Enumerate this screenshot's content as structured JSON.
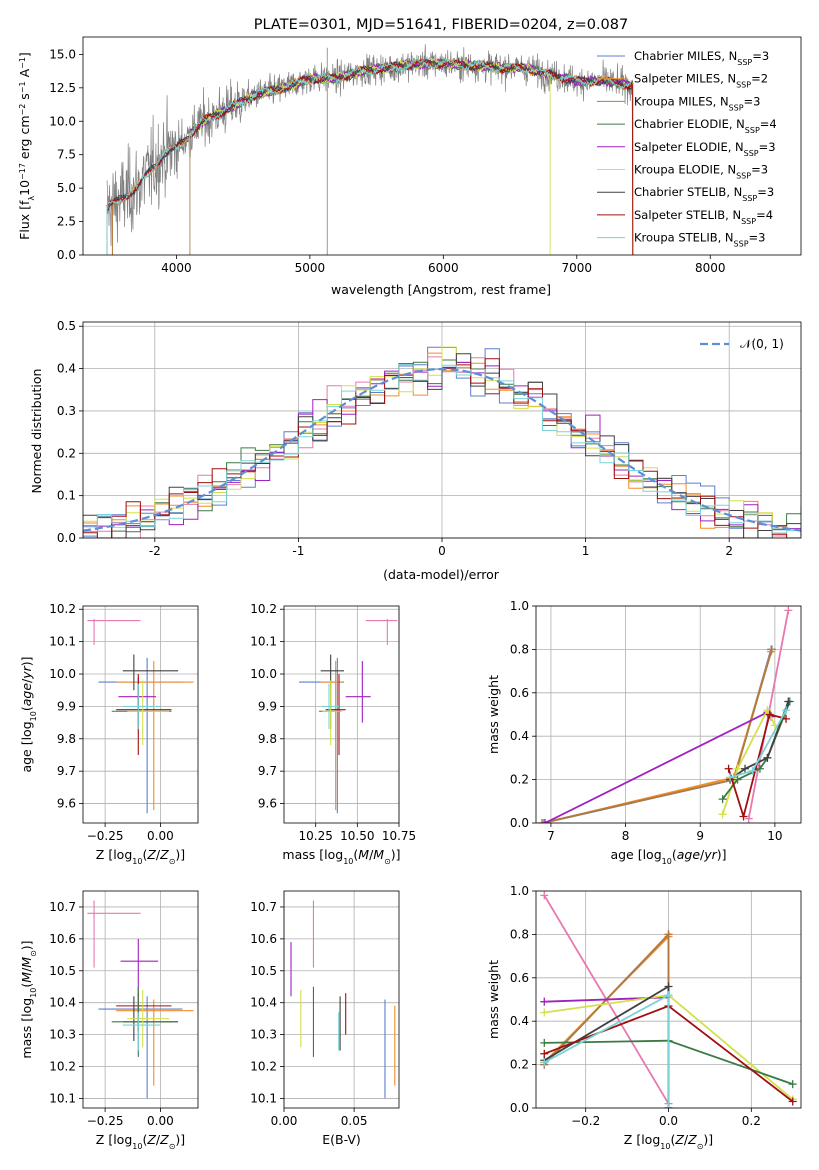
{
  "colors": {
    "Chabrier MILES": "#5b7fd1",
    "Salpeter MILES": "#f28c28",
    "Kroupa MILES": "#b07a3f",
    "Chabrier ELODIE": "#3c7a45",
    "Salpeter ELODIE": "#a020c0",
    "Kroupa ELODIE": "#d4e04a",
    "Chabrier STELIB": "#404040",
    "Salpeter STELIB": "#a01010",
    "Kroupa STELIB": "#7ad3d8",
    "pink": "#e878b0",
    "spectrum_gray": "#808080",
    "gaussian": "#5b8fd6"
  },
  "chart_data": [
    {
      "id": "spectrum",
      "type": "line",
      "title": "PLATE=0301, MJD=51641, FIBERID=0204, z=0.087",
      "xlabel": "wavelength [Angstrom, rest frame]",
      "ylabel": "Flux [fλ10⁻¹⁷ erg cm⁻² s⁻¹ A⁻¹]",
      "xlim": [
        3300,
        8680
      ],
      "ylim": [
        0,
        16.3
      ],
      "xticks": [
        4000,
        5000,
        6000,
        7000,
        8000
      ],
      "yticks": [
        0.0,
        2.5,
        5.0,
        7.5,
        10.0,
        12.5,
        15.0
      ],
      "continuum": [
        [
          3480,
          3.5
        ],
        [
          3700,
          5.0
        ],
        [
          3900,
          7.5
        ],
        [
          4000,
          8.0
        ],
        [
          4200,
          10.0
        ],
        [
          4400,
          11.0
        ],
        [
          4600,
          12.0
        ],
        [
          4800,
          12.5
        ],
        [
          5000,
          13.2
        ],
        [
          5200,
          13.2
        ],
        [
          5400,
          13.8
        ],
        [
          5600,
          14.0
        ],
        [
          5800,
          14.3
        ],
        [
          6000,
          14.3
        ],
        [
          6200,
          14.2
        ],
        [
          6400,
          14.0
        ],
        [
          6600,
          14.0
        ],
        [
          6800,
          13.5
        ],
        [
          7000,
          13.0
        ],
        [
          7200,
          13.0
        ],
        [
          7400,
          12.7
        ]
      ],
      "legend": [
        {
          "label": "Chabrier MILES, N_SSP=3",
          "color": "Chabrier MILES"
        },
        {
          "label": "Salpeter MILES, N_SSP=2",
          "color": "Salpeter MILES"
        },
        {
          "label": "Kroupa MILES, N_SSP=3",
          "color": "Kroupa MILES"
        },
        {
          "label": "Chabrier ELODIE, N_SSP=4",
          "color": "Chabrier ELODIE"
        },
        {
          "label": "Salpeter ELODIE, N_SSP=3",
          "color": "Salpeter ELODIE"
        },
        {
          "label": "Kroupa ELODIE, N_SSP=3",
          "color": "Kroupa ELODIE"
        },
        {
          "label": "Chabrier STELIB, N_SSP=3",
          "color": "Chabrier STELIB"
        },
        {
          "label": "Salpeter STELIB, N_SSP=4",
          "color": "Salpeter STELIB"
        },
        {
          "label": "Kroupa STELIB, N_SSP=3",
          "color": "Kroupa STELIB"
        }
      ],
      "legend_position": "right"
    },
    {
      "id": "residuals",
      "type": "step",
      "xlabel": "(data-model)/error",
      "ylabel": "Normed distribution",
      "xlim": [
        -2.5,
        2.5
      ],
      "ylim": [
        0,
        0.51
      ],
      "xticks": [
        -2,
        -1,
        0,
        1,
        2
      ],
      "yticks": [
        0.0,
        0.1,
        0.2,
        0.3,
        0.4,
        0.5
      ],
      "bin_width": 0.1,
      "legend": [
        {
          "label": "𝒩(0, 1)",
          "color": "gaussian"
        }
      ],
      "legend_position": "upper right",
      "grid": true
    },
    {
      "id": "age_vs_Z",
      "type": "errorbar",
      "xlabel": "Z [log10(Z/Z⊙)]",
      "ylabel": "age  [log10(age/yr)]",
      "xlim": [
        -0.35,
        0.17
      ],
      "ylim": [
        9.54,
        10.21
      ],
      "xticks": [
        -0.25,
        0.0
      ],
      "xticklabels": [
        "−0.25",
        "0.00"
      ],
      "yticks": [
        9.6,
        9.7,
        9.8,
        9.9,
        10.0,
        10.1,
        10.2
      ],
      "grid": true,
      "points": [
        {
          "c": "pink",
          "x": -0.3,
          "xl": -0.33,
          "xh": -0.09,
          "y": 10.165,
          "yl": 10.09,
          "yh": 10.17
        },
        {
          "c": "Chabrier MILES",
          "x": -0.06,
          "xl": -0.28,
          "xh": 0.1,
          "y": 9.975,
          "yl": 9.57,
          "yh": 10.05
        },
        {
          "c": "Salpeter MILES",
          "x": -0.03,
          "xl": -0.2,
          "xh": 0.15,
          "y": 9.975,
          "yl": 9.58,
          "yh": 10.04
        },
        {
          "c": "Chabrier STELIB",
          "x": -0.12,
          "xl": -0.17,
          "xh": 0.08,
          "y": 10.01,
          "yl": 9.95,
          "yh": 10.06
        },
        {
          "c": "Salpeter ELODIE",
          "x": -0.1,
          "xl": -0.19,
          "xh": -0.02,
          "y": 9.93,
          "yl": 9.88,
          "yh": 9.99
        },
        {
          "c": "Chabrier ELODIE",
          "x": -0.1,
          "xl": -0.22,
          "xh": 0.05,
          "y": 9.885,
          "yl": 9.83,
          "yh": 9.95
        },
        {
          "c": "Salpeter STELIB",
          "x": -0.1,
          "xl": -0.2,
          "xh": 0.05,
          "y": 9.89,
          "yl": 9.75,
          "yh": 10.0
        },
        {
          "c": "Kroupa ELODIE",
          "x": -0.08,
          "xl": -0.15,
          "xh": 0.04,
          "y": 9.885,
          "yl": 9.78,
          "yh": 9.98
        },
        {
          "c": "Kroupa STELIB",
          "x": -0.1,
          "xl": -0.17,
          "xh": 0.0,
          "y": 9.9,
          "yl": 9.83,
          "yh": 9.97
        }
      ]
    },
    {
      "id": "age_vs_mass",
      "type": "errorbar",
      "xlabel": "mass [log10(M/M⊙)]",
      "xlim": [
        10.06,
        10.75
      ],
      "ylim": [
        9.54,
        10.21
      ],
      "xticks": [
        10.25,
        10.5,
        10.75
      ],
      "xticklabels": [
        "10.25",
        "10.50",
        "10.75"
      ],
      "yticks": [
        9.6,
        9.7,
        9.8,
        9.9,
        10.0,
        10.1,
        10.2
      ],
      "grid": true,
      "points": [
        {
          "c": "pink",
          "x": 10.68,
          "xl": 10.55,
          "xh": 10.74,
          "y": 10.165,
          "yl": 10.09,
          "yh": 10.17
        },
        {
          "c": "Chabrier MILES",
          "x": 10.38,
          "xl": 10.15,
          "xh": 10.42,
          "y": 9.975,
          "yl": 9.57,
          "yh": 10.05
        },
        {
          "c": "Salpeter MILES",
          "x": 10.37,
          "xl": 10.28,
          "xh": 10.41,
          "y": 9.975,
          "yl": 9.58,
          "yh": 10.04
        },
        {
          "c": "Chabrier STELIB",
          "x": 10.34,
          "xl": 10.28,
          "xh": 10.42,
          "y": 10.01,
          "yl": 9.95,
          "yh": 10.06
        },
        {
          "c": "Salpeter ELODIE",
          "x": 10.53,
          "xl": 10.43,
          "xh": 10.58,
          "y": 9.93,
          "yl": 9.85,
          "yh": 10.04
        },
        {
          "c": "Chabrier ELODIE",
          "x": 10.34,
          "xl": 10.27,
          "xh": 10.4,
          "y": 9.885,
          "yl": 9.83,
          "yh": 9.95
        },
        {
          "c": "Salpeter STELIB",
          "x": 10.39,
          "xl": 10.31,
          "xh": 10.43,
          "y": 9.89,
          "yl": 9.75,
          "yh": 10.0
        },
        {
          "c": "Kroupa ELODIE",
          "x": 10.34,
          "xl": 10.29,
          "xh": 10.41,
          "y": 9.885,
          "yl": 9.78,
          "yh": 9.98
        },
        {
          "c": "Kroupa STELIB",
          "x": 10.33,
          "xl": 10.29,
          "xh": 10.39,
          "y": 9.9,
          "yl": 9.83,
          "yh": 9.97
        }
      ]
    },
    {
      "id": "weight_vs_age",
      "type": "line",
      "xlabel": "age  [log10(age/yr)]",
      "ylabel": "mass weight",
      "xlim": [
        6.8,
        10.35
      ],
      "ylim": [
        0,
        1.0
      ],
      "xticks": [
        7,
        8,
        9,
        10
      ],
      "yticks": [
        0.0,
        0.2,
        0.4,
        0.6,
        0.8,
        1.0
      ],
      "grid": true,
      "series": [
        {
          "c": "Chabrier MILES",
          "pts": [
            [
              6.9,
              0.0
            ],
            [
              9.45,
              0.2
            ],
            [
              9.95,
              0.8
            ]
          ]
        },
        {
          "c": "Salpeter MILES",
          "pts": [
            [
              6.9,
              0.0
            ],
            [
              9.45,
              0.21
            ],
            [
              9.95,
              0.79
            ]
          ]
        },
        {
          "c": "Kroupa MILES",
          "pts": [
            [
              6.88,
              0.0
            ],
            [
              9.45,
              0.2
            ],
            [
              9.96,
              0.8
            ]
          ]
        },
        {
          "c": "pink",
          "pts": [
            [
              9.65,
              0.02
            ],
            [
              10.18,
              0.98
            ]
          ]
        },
        {
          "c": "Salpeter ELODIE",
          "pts": [
            [
              6.92,
              0.0
            ],
            [
              9.9,
              0.51
            ],
            [
              9.95,
              0.49
            ]
          ]
        },
        {
          "c": "Kroupa ELODIE",
          "pts": [
            [
              9.3,
              0.04
            ],
            [
              9.5,
              0.25
            ],
            [
              9.9,
              0.52
            ],
            [
              10.0,
              0.45
            ]
          ]
        },
        {
          "c": "Chabrier ELODIE",
          "pts": [
            [
              9.3,
              0.11
            ],
            [
              9.5,
              0.2
            ],
            [
              9.8,
              0.25
            ],
            [
              9.9,
              0.3
            ],
            [
              10.2,
              0.56
            ]
          ]
        },
        {
          "c": "Chabrier STELIB",
          "pts": [
            [
              9.4,
              0.2
            ],
            [
              9.6,
              0.25
            ],
            [
              9.9,
              0.3
            ],
            [
              10.18,
              0.56
            ]
          ]
        },
        {
          "c": "Salpeter STELIB",
          "pts": [
            [
              9.38,
              0.25
            ],
            [
              9.58,
              0.03
            ],
            [
              9.93,
              0.5
            ],
            [
              10.15,
              0.48
            ]
          ]
        },
        {
          "c": "Kroupa STELIB",
          "pts": [
            [
              9.4,
              0.21
            ],
            [
              9.7,
              0.24
            ],
            [
              10.15,
              0.52
            ]
          ]
        }
      ]
    },
    {
      "id": "mass_vs_Z",
      "type": "errorbar",
      "xlabel": "Z [log10(Z/Z⊙)]",
      "ylabel": "mass [log10(M/M⊙)]",
      "xlim": [
        -0.35,
        0.17
      ],
      "ylim": [
        10.07,
        10.75
      ],
      "xticks": [
        -0.25,
        0.0
      ],
      "xticklabels": [
        "−0.25",
        "0.00"
      ],
      "yticks": [
        10.1,
        10.2,
        10.3,
        10.4,
        10.5,
        10.6,
        10.7
      ],
      "grid": true,
      "points": [
        {
          "c": "pink",
          "x": -0.3,
          "xl": -0.33,
          "xh": -0.09,
          "y": 10.68,
          "yl": 10.51,
          "yh": 10.72
        },
        {
          "c": "Salpeter ELODIE",
          "x": -0.1,
          "xl": -0.18,
          "xh": -0.01,
          "y": 10.53,
          "yl": 10.42,
          "yh": 10.6
        },
        {
          "c": "Chabrier MILES",
          "x": -0.06,
          "xl": -0.28,
          "xh": 0.1,
          "y": 10.38,
          "yl": 10.1,
          "yh": 10.42
        },
        {
          "c": "Salpeter MILES",
          "x": -0.03,
          "xl": -0.2,
          "xh": 0.15,
          "y": 10.375,
          "yl": 10.14,
          "yh": 10.41
        },
        {
          "c": "Salpeter STELIB",
          "x": -0.1,
          "xl": -0.2,
          "xh": 0.05,
          "y": 10.39,
          "yl": 10.31,
          "yh": 10.43
        },
        {
          "c": "Chabrier STELIB",
          "x": -0.12,
          "xl": -0.17,
          "xh": 0.08,
          "y": 10.34,
          "yl": 10.28,
          "yh": 10.42
        },
        {
          "c": "Chabrier ELODIE",
          "x": -0.1,
          "xl": -0.22,
          "xh": 0.05,
          "y": 10.34,
          "yl": 10.23,
          "yh": 10.45
        },
        {
          "c": "Kroupa ELODIE",
          "x": -0.08,
          "xl": -0.15,
          "xh": 0.04,
          "y": 10.35,
          "yl": 10.26,
          "yh": 10.44
        },
        {
          "c": "Kroupa STELIB",
          "x": -0.1,
          "xl": -0.17,
          "xh": 0.0,
          "y": 10.33,
          "yl": 10.25,
          "yh": 10.37
        }
      ]
    },
    {
      "id": "mass_vs_ebv",
      "type": "errorbar",
      "xlabel": "E(B-V)",
      "xlim": [
        0.0,
        0.082
      ],
      "ylim": [
        10.07,
        10.75
      ],
      "xticks": [
        0.0,
        0.05
      ],
      "xticklabels": [
        "0.00",
        "0.05"
      ],
      "yticks": [
        10.1,
        10.2,
        10.3,
        10.4,
        10.5,
        10.6,
        10.7
      ],
      "grid": true,
      "points": [
        {
          "c": "Salpeter ELODIE",
          "x": 0.005,
          "y": 10.53,
          "yl": 10.42,
          "yh": 10.59
        },
        {
          "c": "pink",
          "x": 0.021,
          "y": 10.68,
          "yl": 10.51,
          "yh": 10.72
        },
        {
          "c": "Kroupa ELODIE",
          "x": 0.012,
          "y": 10.35,
          "yl": 10.26,
          "yh": 10.44
        },
        {
          "c": "Chabrier ELODIE",
          "x": 0.021,
          "y": 10.34,
          "yl": 10.23,
          "yh": 10.45
        },
        {
          "c": "Kroupa STELIB",
          "x": 0.039,
          "y": 10.33,
          "yl": 10.25,
          "yh": 10.37
        },
        {
          "c": "Chabrier STELIB",
          "x": 0.04,
          "y": 10.34,
          "yl": 10.25,
          "yh": 10.42
        },
        {
          "c": "Salpeter STELIB",
          "x": 0.044,
          "y": 10.39,
          "yl": 10.3,
          "yh": 10.43
        },
        {
          "c": "Chabrier MILES",
          "x": 0.072,
          "y": 10.38,
          "yl": 10.1,
          "yh": 10.41
        },
        {
          "c": "Salpeter MILES",
          "x": 0.079,
          "y": 10.37,
          "yl": 10.14,
          "yh": 10.39
        }
      ]
    },
    {
      "id": "weight_vs_Z",
      "type": "line",
      "xlabel": "Z [log10(Z/Z⊙)]",
      "ylabel": "mass weight",
      "xlim": [
        -0.32,
        0.32
      ],
      "ylim": [
        0,
        1.0
      ],
      "xticks": [
        -0.2,
        0.0,
        0.2
      ],
      "xticklabels": [
        "−0.2",
        "0.0",
        "0.2"
      ],
      "yticks": [
        0.0,
        0.2,
        0.4,
        0.6,
        0.8,
        1.0
      ],
      "grid": true,
      "series": [
        {
          "c": "pink",
          "pts": [
            [
              -0.3,
              0.98
            ],
            [
              0.0,
              0.02
            ]
          ]
        },
        {
          "c": "Chabrier MILES",
          "pts": [
            [
              -0.3,
              0.2
            ],
            [
              0.0,
              0.8
            ],
            [
              0.0,
              0.0
            ]
          ]
        },
        {
          "c": "Salpeter MILES",
          "pts": [
            [
              -0.3,
              0.21
            ],
            [
              0.0,
              0.79
            ],
            [
              0.0,
              0.0
            ]
          ]
        },
        {
          "c": "Kroupa MILES",
          "pts": [
            [
              -0.3,
              0.2
            ],
            [
              0.0,
              0.8
            ],
            [
              0.0,
              0.0
            ]
          ]
        },
        {
          "c": "Salpeter ELODIE",
          "pts": [
            [
              -0.3,
              0.49
            ],
            [
              0.0,
              0.51
            ],
            [
              0.0,
              0.0
            ]
          ]
        },
        {
          "c": "Kroupa ELODIE",
          "pts": [
            [
              -0.3,
              0.44
            ],
            [
              0.0,
              0.52
            ],
            [
              0.3,
              0.04
            ]
          ]
        },
        {
          "c": "Chabrier ELODIE",
          "pts": [
            [
              -0.3,
              0.3
            ],
            [
              0.0,
              0.31
            ],
            [
              0.3,
              0.11
            ]
          ]
        },
        {
          "c": "Chabrier STELIB",
          "pts": [
            [
              -0.3,
              0.22
            ],
            [
              0.0,
              0.56
            ],
            [
              0.0,
              0.0
            ]
          ]
        },
        {
          "c": "Salpeter STELIB",
          "pts": [
            [
              -0.3,
              0.25
            ],
            [
              0.0,
              0.47
            ],
            [
              0.3,
              0.03
            ]
          ]
        },
        {
          "c": "Kroupa STELIB",
          "pts": [
            [
              -0.3,
              0.21
            ],
            [
              0.0,
              0.52
            ],
            [
              0.0,
              0.0
            ]
          ]
        }
      ]
    }
  ]
}
